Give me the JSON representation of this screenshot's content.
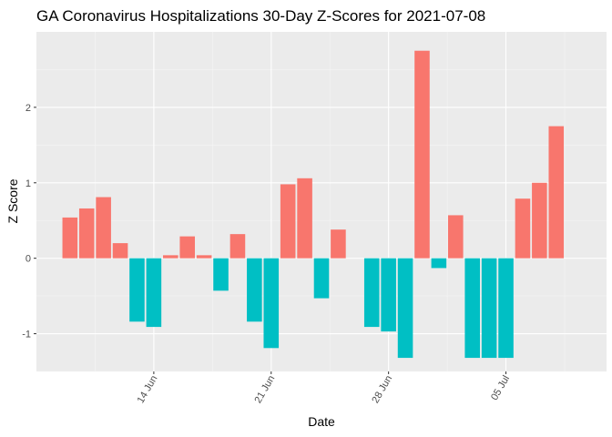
{
  "chart_data": {
    "type": "bar",
    "title": "GA Coronavirus Hospitalizations 30-Day Z-Scores for 2021-07-08",
    "xlabel": "Date",
    "ylabel": "Z Score",
    "ylim": [
      -1.5,
      3.0
    ],
    "yticks": [
      -1,
      0,
      1,
      2
    ],
    "ytick_labels": [
      "-1",
      "0",
      "1",
      "2"
    ],
    "x_tick_labels": [
      {
        "label": "14 Jun",
        "date": "2021-06-14"
      },
      {
        "label": "21 Jun",
        "date": "2021-06-21"
      },
      {
        "label": "28 Jun",
        "date": "2021-06-28"
      },
      {
        "label": "05 Jul",
        "date": "2021-07-05"
      }
    ],
    "x_range": [
      "2021-06-07",
      "2021-07-11"
    ],
    "grid": true,
    "legend": "none",
    "colors": {
      "positive": "#F8766D",
      "negative": "#00BFC4",
      "panel_background": "#EBEBEB",
      "grid_major": "#FFFFFF",
      "grid_minor": "#F5F5F5"
    },
    "bars": [
      {
        "date": "2021-06-09",
        "value": 0.54
      },
      {
        "date": "2021-06-10",
        "value": 0.66
      },
      {
        "date": "2021-06-11",
        "value": 0.81
      },
      {
        "date": "2021-06-12",
        "value": 0.2
      },
      {
        "date": "2021-06-13",
        "value": -0.84
      },
      {
        "date": "2021-06-14",
        "value": -0.91
      },
      {
        "date": "2021-06-15",
        "value": 0.04
      },
      {
        "date": "2021-06-16",
        "value": 0.29
      },
      {
        "date": "2021-06-17",
        "value": 0.04
      },
      {
        "date": "2021-06-18",
        "value": -0.43
      },
      {
        "date": "2021-06-19",
        "value": 0.32
      },
      {
        "date": "2021-06-20",
        "value": -0.84
      },
      {
        "date": "2021-06-21",
        "value": -1.19
      },
      {
        "date": "2021-06-22",
        "value": 0.98
      },
      {
        "date": "2021-06-23",
        "value": 1.06
      },
      {
        "date": "2021-06-24",
        "value": -0.53
      },
      {
        "date": "2021-06-25",
        "value": 0.38
      },
      {
        "date": "2021-06-27",
        "value": -0.91
      },
      {
        "date": "2021-06-28",
        "value": -0.97
      },
      {
        "date": "2021-06-29",
        "value": -1.32
      },
      {
        "date": "2021-06-30",
        "value": 2.75
      },
      {
        "date": "2021-07-01",
        "value": -0.13
      },
      {
        "date": "2021-07-02",
        "value": 0.57
      },
      {
        "date": "2021-07-03",
        "value": -1.32
      },
      {
        "date": "2021-07-04",
        "value": -1.32
      },
      {
        "date": "2021-07-05",
        "value": -1.32
      },
      {
        "date": "2021-07-06",
        "value": 0.79
      },
      {
        "date": "2021-07-07",
        "value": 1.0
      },
      {
        "date": "2021-07-08",
        "value": 1.75
      }
    ]
  }
}
